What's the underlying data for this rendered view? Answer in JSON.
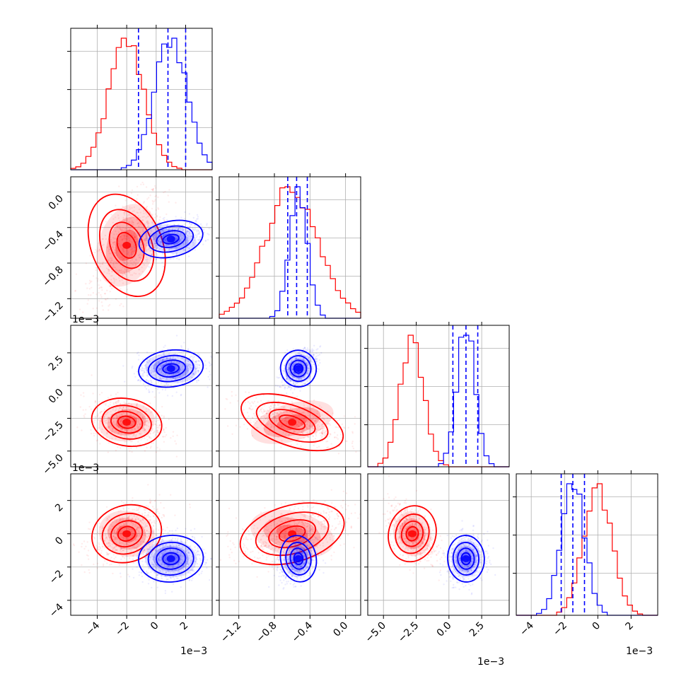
{
  "chart_data": {
    "type": "scatter",
    "title": "",
    "layout": "corner-plot",
    "grid": true,
    "series": [
      {
        "color": "#ff0000"
      },
      {
        "color": "#0000ff"
      }
    ],
    "params": [
      {
        "range": [
          -5.8,
          3.8
        ],
        "ticks": [
          -4,
          -2,
          0,
          2
        ],
        "tick_labels": [
          "−4",
          "−2",
          "0",
          "2"
        ],
        "offset": "1e−3"
      },
      {
        "range": [
          -1.42,
          0.17
        ],
        "ticks": [
          -1.2,
          -0.8,
          -0.4,
          0.0
        ],
        "tick_labels": [
          "−1.2",
          "−0.8",
          "−0.4",
          "0.0"
        ],
        "offset": "1e−3"
      },
      {
        "range": [
          -6.2,
          4.6
        ],
        "ticks": [
          -5.0,
          -2.5,
          0.0,
          2.5
        ],
        "tick_labels": [
          "−5.0",
          "−2.5",
          "0.0",
          "2.5"
        ],
        "offset": "1e−3"
      },
      {
        "range": [
          -4.9,
          3.6
        ],
        "ticks": [
          -4,
          -2,
          0,
          2
        ],
        "tick_labels": [
          "−4",
          "−2",
          "0",
          "2"
        ],
        "offset": "1e−3"
      }
    ],
    "quantiles_blue": [
      [
        -1.2,
        0.8,
        2.0
      ],
      [
        -0.65,
        -0.55,
        -0.43
      ],
      [
        0.3,
        1.3,
        2.2
      ],
      [
        -2.2,
        -1.5,
        -0.8
      ]
    ],
    "distributions": [
      {
        "red_mean": -2.0,
        "red_sd": 1.2,
        "blue_mean": 1.0,
        "blue_sd": 1.1
      },
      {
        "red_mean": -0.6,
        "red_sd": 0.3,
        "blue_mean": -0.53,
        "blue_sd": 0.1
      },
      {
        "red_mean": -2.8,
        "red_sd": 0.9,
        "blue_mean": 1.3,
        "blue_sd": 0.7
      },
      {
        "red_mean": 0.0,
        "red_sd": 0.85,
        "blue_mean": -1.5,
        "blue_sd": 0.7
      }
    ]
  }
}
